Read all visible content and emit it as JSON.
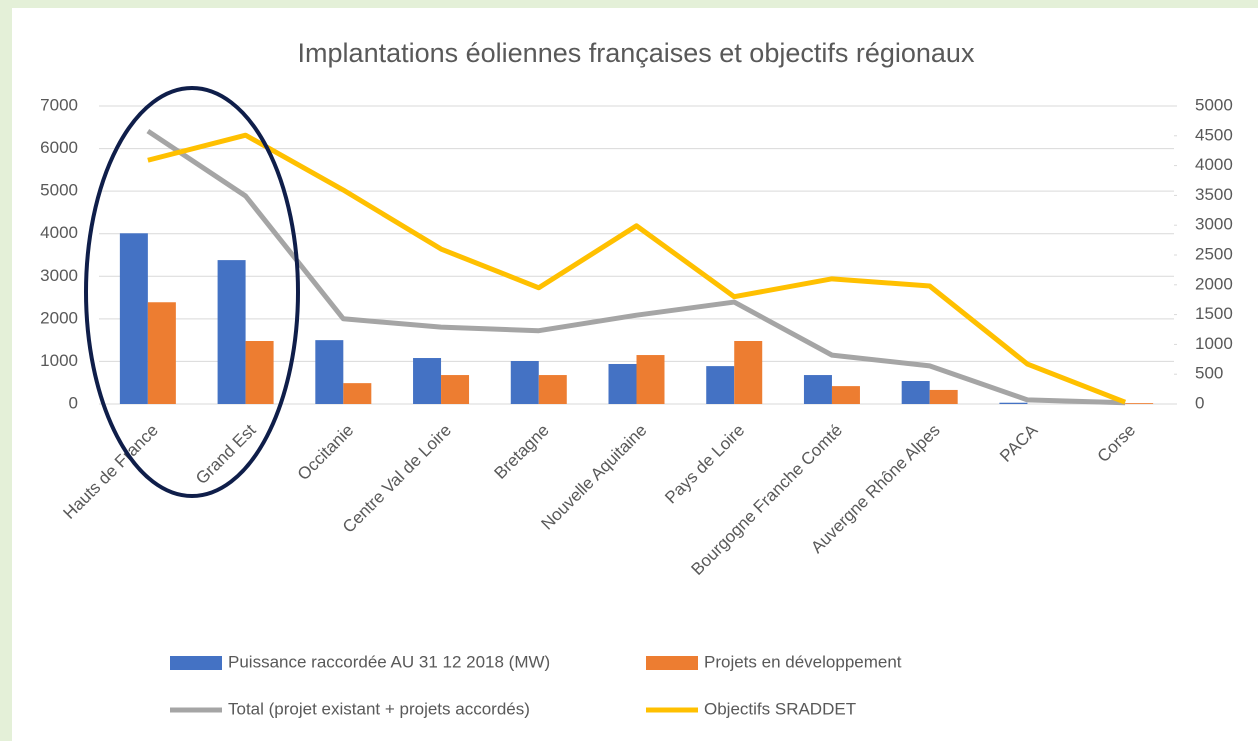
{
  "chart_data": {
    "type": "bar_line",
    "title": "Implantations éoliennes françaises et objectifs régionaux",
    "categories": [
      "Hauts de France",
      "Grand Est",
      "Occitanie",
      "Centre Val de Loire",
      "Bretagne",
      "Nouvelle Aquitaine",
      "Pays de Loire",
      "Bourgogne Franche Comté",
      "Auvergne Rhône Alpes",
      "PACA",
      "Corse"
    ],
    "series": [
      {
        "name": "Puissance raccordée AU 31 12 2018 (MW)",
        "type": "bar",
        "color": "#4472c4",
        "values": [
          4010,
          3380,
          1500,
          1080,
          1010,
          940,
          890,
          680,
          540,
          30,
          0
        ]
      },
      {
        "name": "Projets en développement",
        "type": "bar",
        "color": "#ed7d31",
        "values": [
          2390,
          1480,
          490,
          680,
          680,
          1150,
          1480,
          420,
          330,
          0,
          20
        ]
      },
      {
        "name": "Total (projet existant + projets accordés)",
        "type": "line",
        "axis": "y2",
        "color": "#a5a5a5",
        "values": [
          4580,
          3490,
          1430,
          1290,
          1230,
          1490,
          1710,
          820,
          640,
          70,
          20
        ]
      },
      {
        "name": "Objectifs SRADDET",
        "type": "line",
        "axis": "y2",
        "color": "#ffc000",
        "values": [
          4090,
          4510,
          3590,
          2600,
          1950,
          2990,
          1800,
          2100,
          1980,
          670,
          30
        ]
      }
    ],
    "ylim": [
      0,
      7000
    ],
    "yticks": [
      0,
      1000,
      2000,
      3000,
      4000,
      5000,
      6000,
      7000
    ],
    "y2lim": [
      0,
      5000
    ],
    "y2ticks": [
      0,
      500,
      1000,
      1500,
      2000,
      2500,
      3000,
      3500,
      4000,
      4500,
      5000
    ],
    "grid": true,
    "legend": "bottom"
  }
}
